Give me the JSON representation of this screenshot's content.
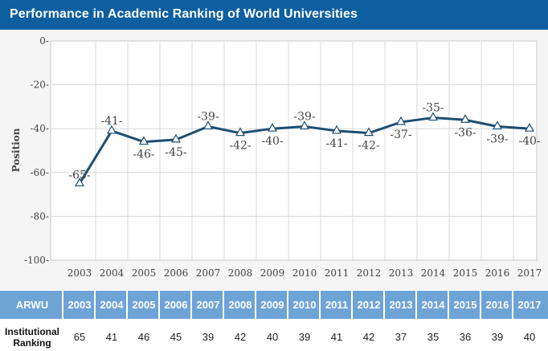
{
  "header": {
    "title": "Performance in Academic Ranking of World Universities"
  },
  "colors": {
    "header_bg": "#0d5fa0",
    "line": "#1e4f72",
    "table_head_bg": "#6ea3d6"
  },
  "chart_data": {
    "type": "line",
    "x": [
      "2003",
      "2004",
      "2005",
      "2006",
      "2007",
      "2008",
      "2009",
      "2010",
      "2011",
      "2012",
      "2013",
      "2014",
      "2015",
      "2016",
      "2017"
    ],
    "values": [
      -65,
      -41,
      -46,
      -45,
      -39,
      -42,
      -40,
      -39,
      -41,
      -42,
      -37,
      -35,
      -36,
      -39,
      -40
    ],
    "data_labels": [
      "-65-",
      "-41-",
      "-46-",
      "-45-",
      "-39-",
      "-42-",
      "-40-",
      "-39-",
      "-41-",
      "-42-",
      "-37-",
      "-35-",
      "-36-",
      "-39-",
      "-40-"
    ],
    "ylabel": "Position",
    "ylim": [
      -100,
      0
    ],
    "yticks": [
      0,
      -20,
      -40,
      -60,
      -80,
      -100
    ],
    "ytick_labels": [
      "0-",
      "-20-",
      "-40-",
      "-60-",
      "-80-",
      "-100-"
    ],
    "grid": true,
    "marker": "triangle"
  },
  "table": {
    "header_label": "ARWU",
    "row_label": "Institutional Ranking",
    "years": [
      "2003",
      "2004",
      "2005",
      "2006",
      "2007",
      "2008",
      "2009",
      "2010",
      "2011",
      "2012",
      "2013",
      "2014",
      "2015",
      "2016",
      "2017"
    ],
    "rankings": [
      "65",
      "41",
      "46",
      "45",
      "39",
      "42",
      "40",
      "39",
      "41",
      "42",
      "37",
      "35",
      "36",
      "39",
      "40"
    ]
  }
}
